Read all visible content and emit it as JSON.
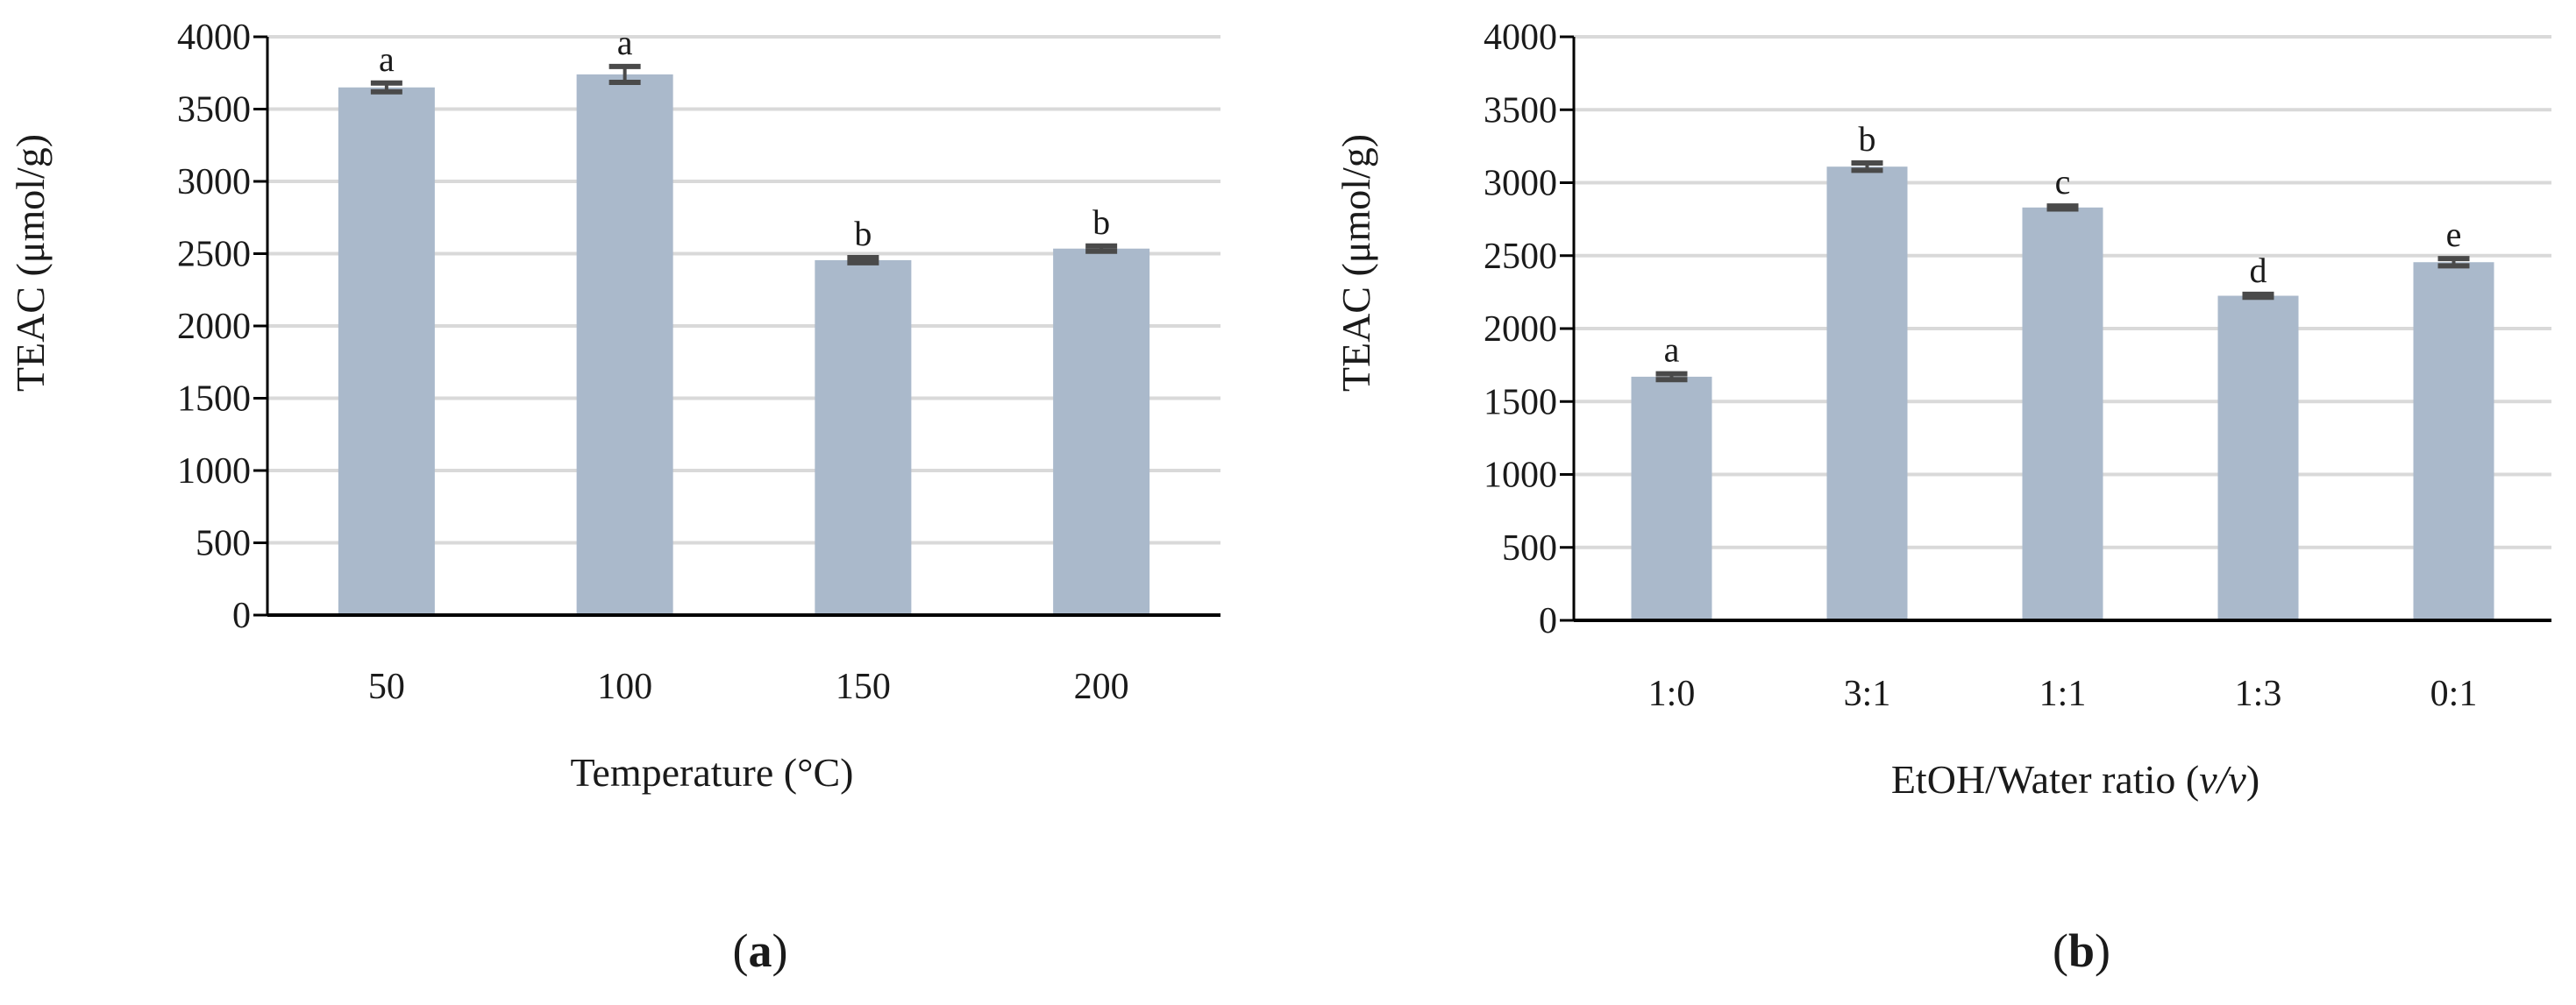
{
  "colors": {
    "bar": "#aab9cb",
    "grid": "#d9d9d9",
    "axis": "#000000",
    "error": "#4a4a4a"
  },
  "chart_data": [
    {
      "type": "bar",
      "panel": "a",
      "categories": [
        "50",
        "100",
        "150",
        "200"
      ],
      "values": [
        3650,
        3740,
        2455,
        2535
      ],
      "errors": [
        30,
        55,
        18,
        18
      ],
      "significance": [
        "a",
        "a",
        "b",
        "b"
      ],
      "xlabel": "Temperature (°C)",
      "ylabel": "TEAC (μmol/g)",
      "ylim": [
        0,
        4000
      ],
      "yticks": [
        "0",
        "500",
        "1000",
        "1500",
        "2000",
        "2500",
        "3000",
        "3500",
        "4000"
      ],
      "grid": true
    },
    {
      "type": "bar",
      "panel": "b",
      "categories": [
        "1:0",
        "3:1",
        "1:1",
        "1:3",
        "0:1"
      ],
      "values": [
        1670,
        3110,
        2830,
        2225,
        2455
      ],
      "errors": [
        20,
        25,
        10,
        10,
        25
      ],
      "significance": [
        "a",
        "b",
        "c",
        "d",
        "e"
      ],
      "xlabel_main": "EtOH/Water ratio (",
      "xlabel_italic": "v/v",
      "xlabel_end": ")",
      "ylabel": "TEAC (μmol/g)",
      "ylim": [
        0,
        4000
      ],
      "yticks": [
        "0",
        "500",
        "1000",
        "1500",
        "2000",
        "2500",
        "3000",
        "3500",
        "4000"
      ],
      "grid": true
    }
  ],
  "panel_labels": {
    "a": {
      "open": "(",
      "letter": "a",
      "close": ")"
    },
    "b": {
      "open": "(",
      "letter": "b",
      "close": ")"
    }
  }
}
